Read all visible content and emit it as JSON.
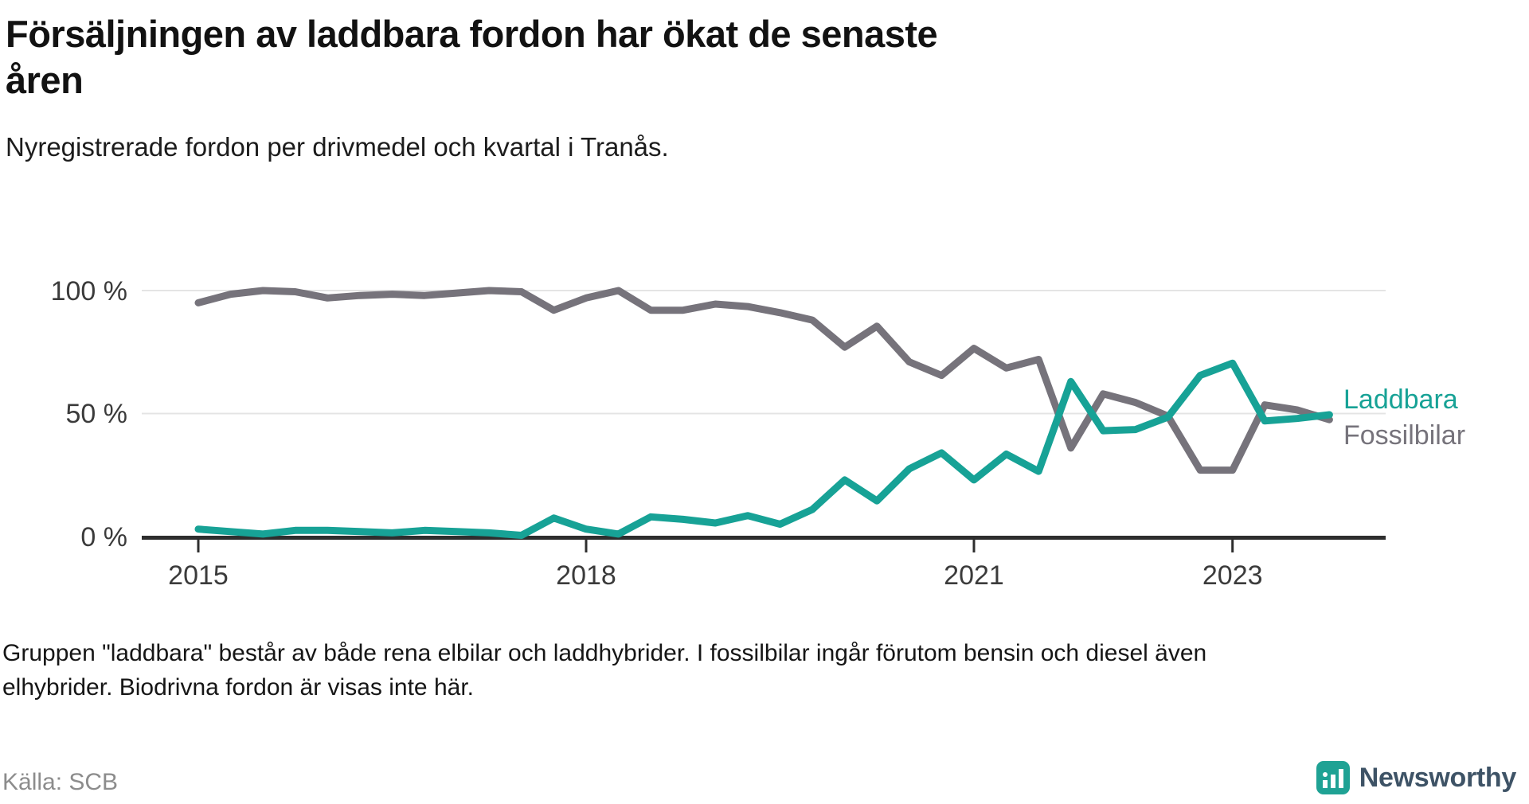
{
  "header": {
    "title_line1": "Försäljningen av laddbara fordon har ökat de senaste",
    "title_line2": "åren",
    "subtitle": "Nyregistrerade fordon per drivmedel och kvartal i Tranås."
  },
  "chart_data": {
    "type": "line",
    "title": "Försäljningen av laddbara fordon har ökat de senaste åren",
    "subtitle": "Nyregistrerade fordon per drivmedel och kvartal i Tranås.",
    "unit": "percent",
    "x_frequency": "quarterly",
    "x_start": "2015 Q1",
    "x_end": "2023 Q4",
    "ylim": [
      0,
      100
    ],
    "grid": "horizontal",
    "legend_position": "right-of-line-ends",
    "y_ticks": [
      {
        "label": "100 %",
        "value": 100
      },
      {
        "label": "50 %",
        "value": 50
      },
      {
        "label": "0 %",
        "value": 0
      }
    ],
    "x_ticks": [
      {
        "label": "2015",
        "quarter_index": 0
      },
      {
        "label": "2018",
        "quarter_index": 12
      },
      {
        "label": "2021",
        "quarter_index": 24
      },
      {
        "label": "2023",
        "quarter_index": 32
      }
    ],
    "series": [
      {
        "name": "Laddbara",
        "color": "#17A296",
        "values": [
          3,
          2,
          1,
          2.5,
          2.5,
          2,
          1.5,
          2.5,
          2,
          1.5,
          0.5,
          7.5,
          3,
          1,
          8,
          7,
          5.5,
          8.5,
          5,
          11,
          23,
          14.5,
          27.5,
          34,
          23,
          33.5,
          26.5,
          63,
          43,
          43.5,
          48.5,
          65.5,
          70.5,
          47,
          48,
          49.5
        ]
      },
      {
        "name": "Fossilbilar",
        "color": "#76737B",
        "values": [
          95,
          98.5,
          100,
          99.5,
          97,
          98,
          98.5,
          98,
          99,
          100,
          99.5,
          92,
          97,
          100,
          92,
          92,
          94.5,
          93.5,
          91,
          88,
          77,
          85.5,
          71,
          65.5,
          76.5,
          68.5,
          72,
          36,
          58,
          54.5,
          49,
          27,
          27,
          53.5,
          51.5,
          47.5
        ]
      }
    ]
  },
  "footer": {
    "note_line1": "Gruppen \"laddbara\" består av både rena elbilar och laddhybrider. I fossilbilar ingår förutom bensin och diesel även",
    "note_line2": "elhybrider. Biodrivna fordon är visas inte här.",
    "source": "Källa: SCB",
    "brand": "Newsworthy"
  },
  "colors": {
    "accent_teal": "#17A296",
    "line_gray": "#76737B",
    "axis": "#2e2e2e",
    "gridline": "#e4e4e4",
    "brand_icon": "#1FA294",
    "brand_text": "#3e5366"
  }
}
